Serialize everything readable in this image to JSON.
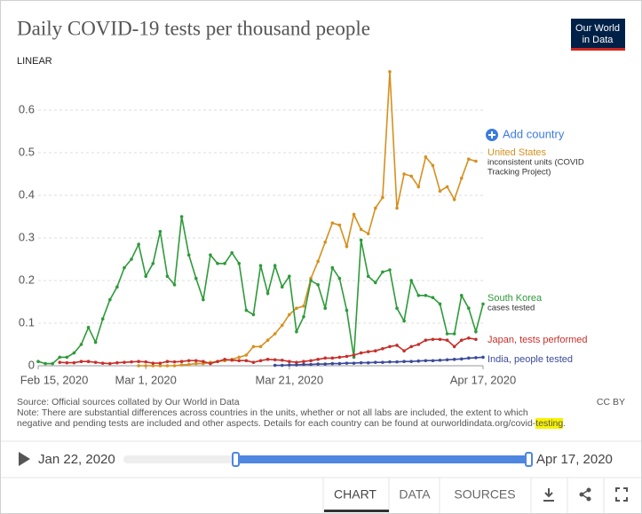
{
  "chart_data": {
    "type": "line",
    "title": "Daily COVID-19 tests per thousand people",
    "x": [
      "2020-02-15",
      "2020-02-16",
      "2020-02-17",
      "2020-02-18",
      "2020-02-19",
      "2020-02-20",
      "2020-02-21",
      "2020-02-22",
      "2020-02-23",
      "2020-02-24",
      "2020-02-25",
      "2020-02-26",
      "2020-02-27",
      "2020-02-28",
      "2020-02-29",
      "2020-03-01",
      "2020-03-02",
      "2020-03-03",
      "2020-03-04",
      "2020-03-05",
      "2020-03-06",
      "2020-03-07",
      "2020-03-08",
      "2020-03-09",
      "2020-03-10",
      "2020-03-11",
      "2020-03-12",
      "2020-03-13",
      "2020-03-14",
      "2020-03-15",
      "2020-03-16",
      "2020-03-17",
      "2020-03-18",
      "2020-03-19",
      "2020-03-20",
      "2020-03-21",
      "2020-03-22",
      "2020-03-23",
      "2020-03-24",
      "2020-03-25",
      "2020-03-26",
      "2020-03-27",
      "2020-03-28",
      "2020-03-29",
      "2020-03-30",
      "2020-03-31",
      "2020-04-01",
      "2020-04-02",
      "2020-04-03",
      "2020-04-04",
      "2020-04-05",
      "2020-04-06",
      "2020-04-07",
      "2020-04-08",
      "2020-04-09",
      "2020-04-10",
      "2020-04-11",
      "2020-04-12",
      "2020-04-13",
      "2020-04-14",
      "2020-04-15",
      "2020-04-16",
      "2020-04-17"
    ],
    "series": [
      {
        "name": "United States",
        "note": [
          "inconsistent units (COVID",
          "Tracking Project)"
        ],
        "color": "#d6901f",
        "values": [
          null,
          null,
          null,
          null,
          null,
          null,
          null,
          null,
          null,
          null,
          null,
          null,
          null,
          null,
          0,
          0,
          0,
          0,
          0,
          0,
          0.002,
          0.003,
          0.005,
          0.005,
          0.008,
          0.01,
          0.012,
          0.015,
          0.02,
          0.025,
          0.045,
          0.045,
          0.06,
          0.075,
          0.095,
          0.12,
          0.135,
          0.14,
          0.205,
          0.245,
          0.29,
          0.335,
          0.33,
          0.28,
          0.355,
          0.32,
          0.31,
          0.37,
          0.395,
          0.69,
          0.37,
          0.45,
          0.445,
          0.42,
          0.49,
          0.47,
          0.41,
          0.42,
          0.39,
          0.44,
          0.485,
          0.48,
          null
        ]
      },
      {
        "name": "South Korea",
        "note": [
          "cases tested"
        ],
        "color": "#2e9a3a",
        "values": [
          0.01,
          0.005,
          0.005,
          0.02,
          0.02,
          0.03,
          0.05,
          0.09,
          0.055,
          0.11,
          0.155,
          0.185,
          0.23,
          0.25,
          0.285,
          0.21,
          0.24,
          0.315,
          0.21,
          0.19,
          0.35,
          0.26,
          0.205,
          0.155,
          0.26,
          0.24,
          0.24,
          0.265,
          0.24,
          0.13,
          0.12,
          0.235,
          0.17,
          0.235,
          0.185,
          0.21,
          0.08,
          0.115,
          0.2,
          0.19,
          0.135,
          0.23,
          0.205,
          0.13,
          0.02,
          0.295,
          0.21,
          0.195,
          0.22,
          0.225,
          0.135,
          0.105,
          0.2,
          0.165,
          0.165,
          0.16,
          0.145,
          0.075,
          0.075,
          0.165,
          0.135,
          0.08,
          0.145
        ]
      },
      {
        "name": "Japan, tests performed",
        "note": [],
        "color": "#c6302b",
        "values": [
          null,
          null,
          null,
          0.008,
          0.007,
          0.007,
          0.01,
          0.01,
          0.008,
          0.006,
          0.005,
          0.007,
          0.008,
          0.009,
          0.01,
          0.009,
          0.006,
          0.006,
          0.01,
          0.009,
          0.01,
          0.012,
          0.012,
          0.01,
          0.005,
          0.01,
          0.015,
          0.013,
          0.012,
          0.012,
          0.008,
          0.012,
          0.015,
          0.014,
          0.013,
          0.01,
          0.008,
          0.01,
          0.012,
          0.015,
          0.018,
          0.018,
          0.02,
          0.022,
          0.025,
          0.03,
          0.033,
          0.035,
          0.04,
          0.045,
          0.048,
          0.035,
          0.045,
          0.05,
          0.06,
          0.062,
          0.062,
          0.06,
          0.045,
          0.06,
          0.065,
          0.062,
          null
        ]
      },
      {
        "name": "India, people tested",
        "note": [],
        "color": "#3b4a9a",
        "values": [
          null,
          null,
          null,
          null,
          null,
          null,
          null,
          null,
          null,
          null,
          null,
          null,
          null,
          null,
          null,
          null,
          null,
          null,
          null,
          null,
          null,
          null,
          null,
          null,
          null,
          null,
          null,
          null,
          null,
          null,
          null,
          null,
          null,
          0.001,
          0.001,
          0.002,
          0.002,
          0.003,
          0.003,
          0.004,
          0.004,
          0.005,
          0.005,
          0.006,
          0.006,
          0.007,
          0.007,
          0.008,
          0.008,
          0.009,
          0.009,
          0.01,
          0.01,
          0.011,
          0.012,
          0.012,
          0.013,
          0.014,
          0.015,
          0.016,
          0.018,
          0.019,
          0.02
        ]
      }
    ],
    "xlim": [
      "2020-02-15",
      "2020-04-17"
    ],
    "xticks": [
      {
        "value": "2020-02-15",
        "label": "Feb 15, 2020"
      },
      {
        "value": "2020-03-01",
        "label": "Mar 1, 2020"
      },
      {
        "value": "2020-03-21",
        "label": "Mar 21, 2020"
      },
      {
        "value": "2020-04-17",
        "label": "Apr 17, 2020"
      }
    ],
    "ylim": [
      0,
      0.7
    ],
    "yticks": [
      0,
      0.1,
      0.2,
      0.3,
      0.4,
      0.5,
      0.6
    ],
    "grid": true
  },
  "controls": {
    "scale": "LINEAR",
    "add_country": "Add country"
  },
  "logo": [
    "Our World",
    "in Data"
  ],
  "footer": {
    "source": "Source: Official sources collated by Our World in Data",
    "license": "CC BY",
    "note": {
      "lines": [
        "Note: There are substantial differences across countries in the units, whether or not all labs are included, the extent to which",
        "negative and pending tests are included and other aspects. Details for each country can be found at ourworldindata.org/covid-"
      ],
      "highlight": "testing",
      "end": "."
    }
  },
  "timeline": {
    "start": "Jan 22, 2020",
    "end": "Apr 17, 2020"
  },
  "tabs": [
    "CHART",
    "DATA",
    "SOURCES"
  ]
}
